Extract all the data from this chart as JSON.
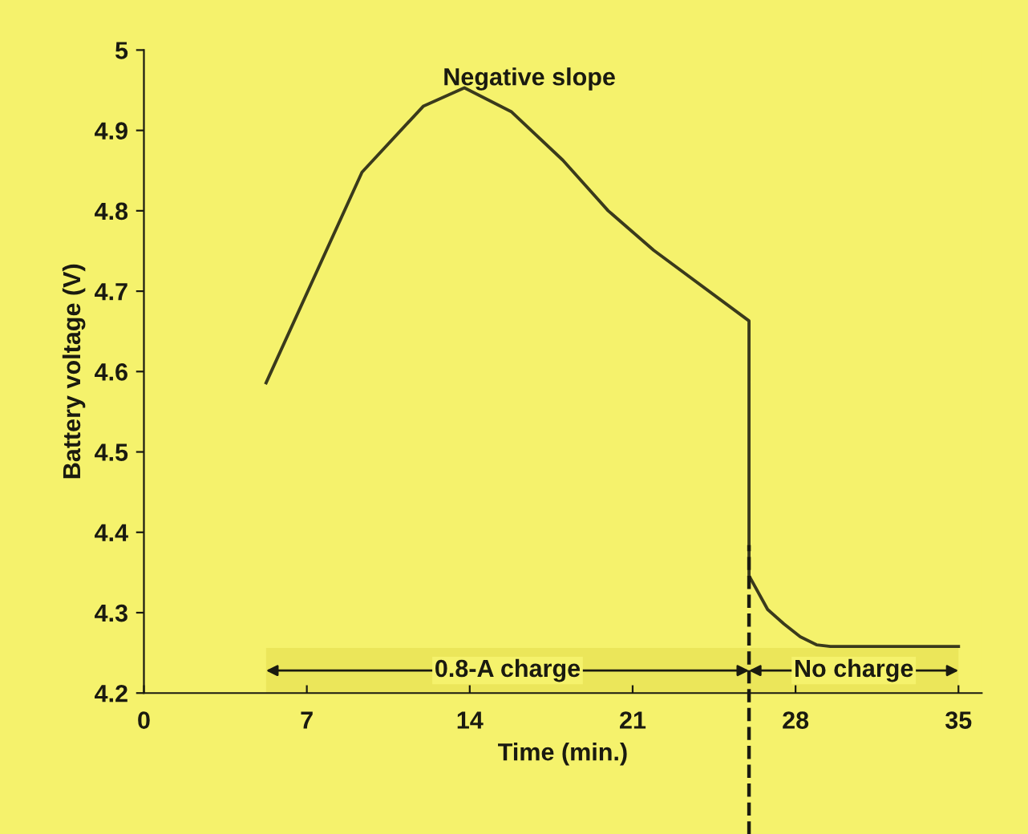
{
  "chart_data": {
    "type": "line",
    "xlabel": "Time (min.)",
    "ylabel": "Battery voltage (V)",
    "series": [
      {
        "color": "#3a3a1c",
        "x": [
          5.25,
          9.37,
          12.0,
          13.77,
          15.8,
          18.0,
          19.95,
          21.9,
          26.0,
          26.0,
          26.8,
          27.5,
          28.2,
          28.9,
          29.5,
          35.0
        ],
        "values": [
          4.586,
          4.848,
          4.93,
          4.953,
          4.923,
          4.863,
          4.8,
          4.751,
          4.663,
          4.346,
          4.304,
          4.286,
          4.27,
          4.26,
          4.258,
          4.258
        ]
      }
    ],
    "xlim": [
      0,
      36
    ],
    "ylim": [
      4.2,
      5
    ],
    "xticks": [
      0,
      7,
      14,
      21,
      28,
      35
    ],
    "yticks": [
      4.2,
      4.3,
      4.4,
      4.5,
      4.6,
      4.7,
      4.8,
      4.9,
      5
    ],
    "ref_lines": [
      {
        "axis": "x",
        "value": 26.0,
        "line_style": "dashed",
        "color": "#1a1a10"
      }
    ],
    "bands": [
      {
        "axis": "x",
        "from": 5.25,
        "to": 26.0,
        "label": "0.8-A charge",
        "color": "#ebe65a"
      },
      {
        "axis": "x",
        "from": 26.0,
        "to": 35.0,
        "label": "No charge",
        "color": "#ebe65a"
      }
    ],
    "annotations": [
      "Negative slope"
    ],
    "grid": false,
    "legend": false,
    "marker": "none",
    "line_style": "solid"
  }
}
